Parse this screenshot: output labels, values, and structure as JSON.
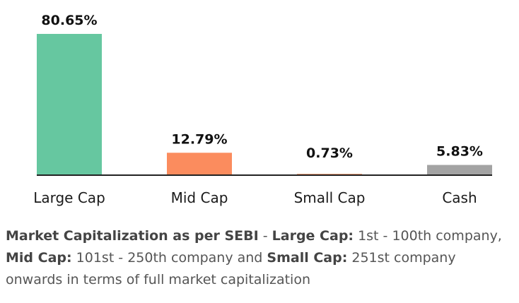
{
  "chart_data": {
    "type": "bar",
    "categories": [
      "Large Cap",
      "Mid Cap",
      "Small Cap",
      "Cash"
    ],
    "values": [
      80.65,
      12.79,
      0.73,
      5.83
    ],
    "value_labels": [
      "80.65%",
      "12.79%",
      "0.73%",
      "5.83%"
    ],
    "colors": [
      "#66c7a0",
      "#fb8c5e",
      "#fb8c5e",
      "#a3a3a3"
    ],
    "title": "",
    "xlabel": "",
    "ylabel": "",
    "ylim": [
      0,
      80.65
    ],
    "grid": false,
    "legend": "none"
  },
  "footnote": {
    "b1": "Market Capitalization as per SEBI",
    "t1": " - ",
    "b2": "Large Cap:",
    "t2": " 1st - 100th company, ",
    "b3": "Mid Cap:",
    "t3": " 101st - 250th company and ",
    "b4": "Small Cap:",
    "t4": " 251st company onwards in terms of full market capitalization"
  }
}
